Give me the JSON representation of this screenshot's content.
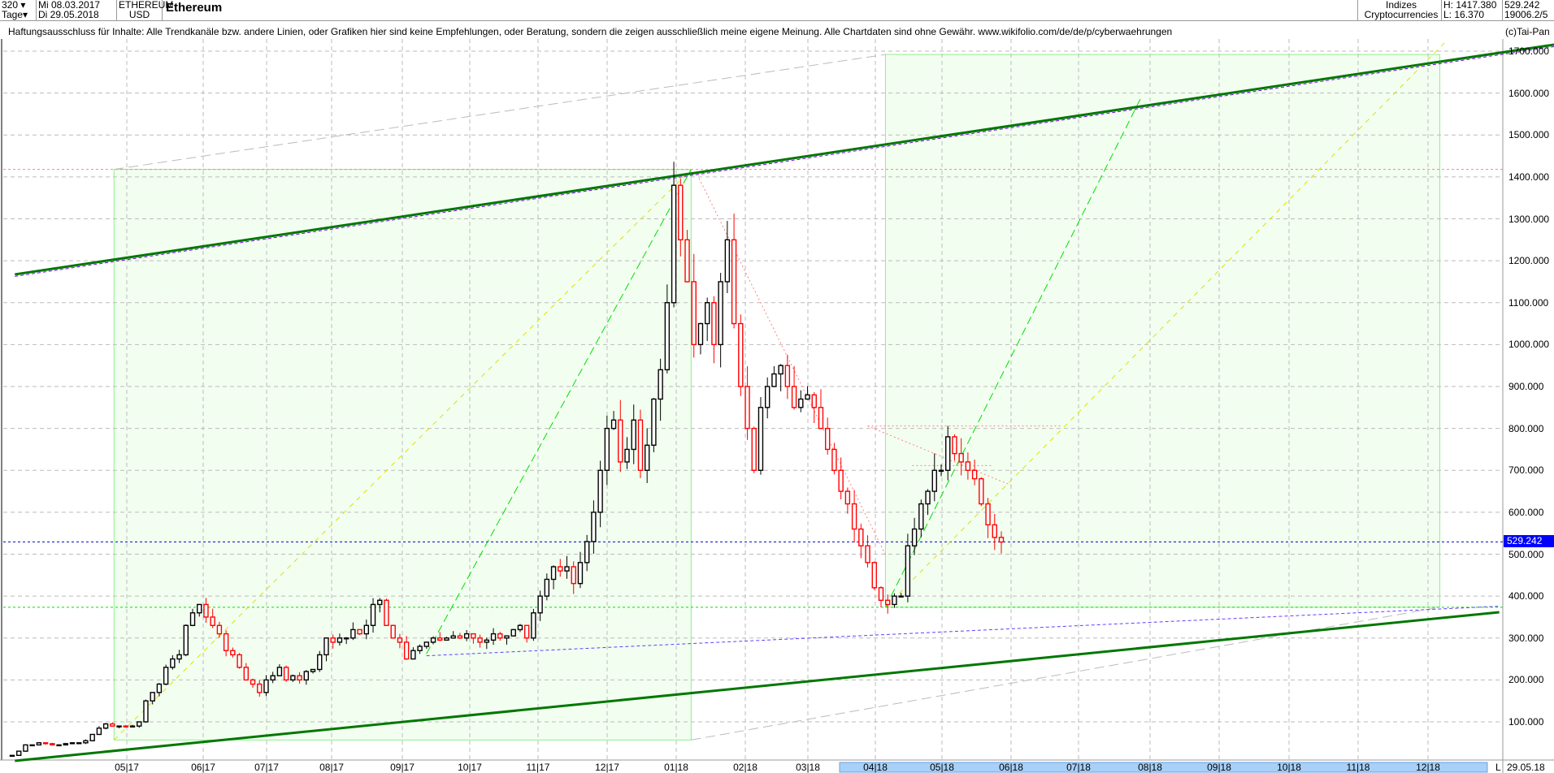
{
  "header": {
    "bars": "320",
    "unit": "Tage",
    "start_date": "Mi 08.03.2017",
    "end_date": "Di 29.05.2018",
    "symbol": "ETHEREUM",
    "currency": "USD",
    "name": "Ethereum",
    "group1": "Indizes",
    "group2": "Cryptocurrencies",
    "high": "H: 1417.380",
    "low": "L: 16.370",
    "last": "529.242",
    "extra": "19006.2/5"
  },
  "disclaimer": "Haftungsausschluss für Inhalte: Alle Trendkanäle bzw. andere Linien, oder Grafiken hier sind keine Empfehlungen, oder Beratung, sondern die zeigen ausschließlich meine eigene Meinung. Alle Chartdaten sind ohne Gewähr.  www.wikifolio.com/de/de/p/cyberwaehrungen",
  "copyright": "(c)Tai-Pan",
  "axis_end_marker": "L",
  "axis_end_date": "29.05.18",
  "colors": {
    "up": "#000000",
    "down": "#ff0000",
    "channel": "#007700",
    "zone": "#f2fff0",
    "price_tag": "#0000ff"
  },
  "chart_data": {
    "type": "candlestick",
    "title": "Ethereum",
    "ylim": [
      0,
      1750
    ],
    "yticks": [
      "100.000",
      "200.000",
      "300.000",
      "400.000",
      "500.000",
      "600.000",
      "700.000",
      "800.000",
      "900.000",
      "1000.000",
      "1100.000",
      "1200.000",
      "1300.000",
      "1400.000",
      "1500.000",
      "1600.000",
      "1700.000"
    ],
    "xticks": [
      "05|17",
      "06|17",
      "07|17",
      "08|17",
      "09|17",
      "10|17",
      "11|17",
      "12|17",
      "01|18",
      "02|18",
      "03|18",
      "04|18",
      "05|18",
      "06|18",
      "07|18",
      "08|18",
      "09|18",
      "10|18",
      "11|18",
      "12|18"
    ],
    "current_price": 529.242,
    "price_tag": "529.242",
    "grid": true,
    "closes": [
      20,
      30,
      45,
      45,
      50,
      48,
      45,
      45,
      48,
      50,
      50,
      55,
      70,
      85,
      95,
      90,
      90,
      88,
      90,
      100,
      150,
      170,
      190,
      230,
      250,
      260,
      330,
      360,
      380,
      350,
      330,
      310,
      270,
      260,
      230,
      200,
      190,
      170,
      200,
      210,
      230,
      200,
      210,
      200,
      220,
      225,
      260,
      300,
      290,
      300,
      300,
      320,
      310,
      330,
      380,
      390,
      330,
      300,
      290,
      250,
      270,
      280,
      290,
      300,
      295,
      300,
      305,
      300,
      310,
      300,
      290,
      295,
      310,
      300,
      305,
      320,
      330,
      300,
      360,
      400,
      440,
      470,
      460,
      470,
      430,
      480,
      530,
      600,
      700,
      800,
      820,
      720,
      750,
      820,
      700,
      760,
      870,
      940,
      1100,
      1380,
      1250,
      1150,
      1000,
      1050,
      1100,
      1000,
      1150,
      1250,
      1050,
      900,
      800,
      700,
      850,
      900,
      930,
      950,
      900,
      850,
      870,
      880,
      850,
      800,
      750,
      700,
      650,
      620,
      560,
      520,
      480,
      420,
      390,
      380,
      400,
      400,
      520,
      560,
      620,
      650,
      700,
      700,
      780,
      740,
      720,
      700,
      680,
      620,
      570,
      540,
      529
    ]
  }
}
